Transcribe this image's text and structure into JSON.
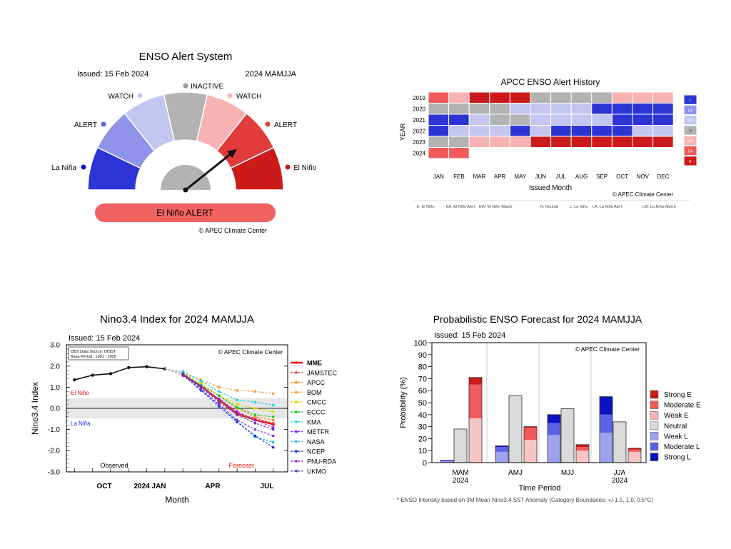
{
  "colors": {
    "strong_red": "#cc1a1a",
    "red": "#e23b3b",
    "mid_red": "#f05a5a",
    "light_red": "#f7b3b3",
    "gray": "#b3b3b3",
    "light_blue": "#c4c6f1",
    "mid_blue": "#8f93ea",
    "blue": "#5d62e5",
    "strong_blue": "#2d34d6",
    "navy": "#0b14c0",
    "banner": "#f26161"
  },
  "alert_panel": {
    "title": "ENSO Alert System",
    "issued": "Issued: 15 Feb 2024",
    "season": "2024 MAMJJA",
    "labels": {
      "inactive": "INACTIVE",
      "watch_left": "WATCH",
      "watch_right": "WATCH",
      "alert_left": "ALERT",
      "alert_right": "ALERT",
      "la_nina": "La Niña",
      "el_nino": "El Niño"
    },
    "status": "El Niño ALERT",
    "status_level": "El Niño Alert",
    "credit": "© APEC Climate Center"
  },
  "history_panel": {
    "chart_data": {
      "type": "heatmap",
      "title": "APCC ENSO Alert History",
      "xlabel": "Issued Month",
      "ylabel": "YEAR",
      "months": [
        "JAN",
        "FEB",
        "MAR",
        "APR",
        "MAY",
        "JUN",
        "JUL",
        "AUG",
        "SEP",
        "OCT",
        "NOV",
        "DEC"
      ],
      "years": [
        "2019",
        "2020",
        "2021",
        "2022",
        "2023",
        "2024"
      ],
      "cells": [
        [
          "EA",
          "EW",
          "E",
          "E",
          "E",
          "N",
          "N",
          "N",
          "N",
          "EW",
          "EW",
          "EW"
        ],
        [
          "N",
          "N",
          "N",
          "N",
          "LW",
          "LW",
          "LW",
          "LW",
          "LA",
          "LA",
          "LA",
          "LA"
        ],
        [
          "LA",
          "LA",
          "LW",
          "N",
          "N",
          "LW",
          "LW",
          "LW",
          "LW",
          "LA",
          "LA",
          "LA"
        ],
        [
          "LA",
          "LW",
          "LW",
          "LW",
          "LA",
          "LW",
          "LA",
          "LA",
          "LA",
          "LA",
          "LW",
          "LW"
        ],
        [
          "N",
          "N",
          "EW",
          "EW",
          "EW",
          "E",
          "E",
          "E",
          "E",
          "E",
          "E",
          "E"
        ],
        [
          "EA",
          "EA",
          "",
          "",
          "",
          "",
          "",
          "",
          "",
          "",
          "",
          ""
        ]
      ],
      "legend": [
        "L",
        "LA",
        "LW",
        "N",
        "EW",
        "EA",
        "E"
      ]
    },
    "credit": "© APEC Climate Center",
    "footnote": [
      "E: El Niño",
      "EA: El Niño Alert",
      "EW: El Niño Watch",
      "N: Neutral",
      "L: La Niña",
      "LA: La Niña Alert",
      "LW: La Niña Watch"
    ]
  },
  "nino_panel": {
    "chart_data": {
      "type": "line",
      "title": "Nino3.4 Index for 2024 MAMJJA",
      "issued": "Issued: 15 Feb 2024",
      "xlabel": "Month",
      "ylabel": "Nino3.4 Index",
      "ylim": [
        -3.0,
        3.0
      ],
      "yticks": [
        "3.0",
        "2.0",
        "1.0",
        "0.0",
        "-1.0",
        "-2.0",
        "-3.0"
      ],
      "xtick_labels": [
        "OCT",
        "2024 JAN",
        "APR",
        "JUL"
      ],
      "source_note": [
        "OBS Data Source: OISST",
        "Base Period : 1991 - 2020"
      ],
      "credit": "© APEC Climate Center",
      "el_nino_label": "El Niño",
      "la_nina_label": "La Niña",
      "observed_label": "Observed",
      "forecast_label": "Forecast",
      "observed": {
        "x": [
          "Aug",
          "Sep",
          "Oct",
          "Nov",
          "Dec",
          "Jan"
        ],
        "y": [
          1.35,
          1.57,
          1.64,
          1.93,
          1.97,
          1.87
        ]
      },
      "forecast_x": [
        "Feb",
        "Mar",
        "Apr",
        "May",
        "Jun",
        "Jul"
      ],
      "series": [
        {
          "name": "MME",
          "color": "#e81414",
          "values": [
            1.6,
            1.05,
            0.4,
            -0.25,
            -0.55,
            -0.75
          ]
        },
        {
          "name": "JAMSTEC",
          "color": "#e84848",
          "values": [
            1.6,
            1.0,
            0.4,
            -0.3,
            -0.45,
            -0.7
          ]
        },
        {
          "name": "APCC",
          "color": "#ff8c00",
          "values": [
            1.6,
            1.1,
            0.6,
            0.0,
            -0.4,
            -0.55
          ]
        },
        {
          "name": "BOM",
          "color": "#f59d38",
          "values": [
            1.7,
            1.35,
            1.0,
            0.85,
            0.8,
            0.7
          ]
        },
        {
          "name": "CMCC",
          "color": "#d8d800",
          "values": [
            1.7,
            1.2,
            0.6,
            0.2,
            0.0,
            -0.15
          ]
        },
        {
          "name": "ECCC",
          "color": "#1ec81e",
          "values": [
            1.65,
            1.1,
            0.6,
            0.05,
            -0.3,
            -0.4
          ]
        },
        {
          "name": "KMA",
          "color": "#12d8d8",
          "values": [
            1.75,
            1.3,
            0.8,
            0.4,
            0.3,
            0.15
          ]
        },
        {
          "name": "METFR",
          "color": "#8c1aff",
          "values": [
            1.65,
            1.05,
            0.45,
            -0.15,
            -0.55,
            -0.9
          ]
        },
        {
          "name": "NASA",
          "color": "#22b8f0",
          "values": [
            1.6,
            0.95,
            0.1,
            -0.6,
            -1.35,
            -1.6
          ]
        },
        {
          "name": "NCEP",
          "color": "#1030e0",
          "values": [
            1.6,
            0.85,
            0.1,
            -0.65,
            -1.3,
            -1.85
          ]
        },
        {
          "name": "PNU-RDA",
          "color": "#8a2be2",
          "values": [
            1.55,
            0.9,
            0.2,
            -0.55,
            -1.0,
            -1.3
          ]
        },
        {
          "name": "UKMO",
          "color": "#5a3ca0",
          "values": [
            1.6,
            1.0,
            0.3,
            -0.3,
            -0.7,
            -1.0
          ]
        }
      ]
    }
  },
  "prob_panel": {
    "chart_data": {
      "type": "bar",
      "title": "Probabilistic ENSO Forecast for 2024 MAMJJA",
      "issued": "Issued: 15 Feb 2024",
      "xlabel": "Time Period",
      "ylabel": "Probability (%)",
      "ylim": [
        0,
        100
      ],
      "yticks": [
        "100",
        "90",
        "80",
        "70",
        "60",
        "50",
        "40",
        "30",
        "20",
        "10",
        "0"
      ],
      "categories": [
        [
          "MAM",
          "2024"
        ],
        [
          "AMJ",
          ""
        ],
        [
          "MJJ",
          ""
        ],
        [
          "JJA",
          "2024"
        ]
      ],
      "credit": "© APEC Climate Center",
      "legend": [
        "Strong E",
        "Moderate E",
        "Weak E",
        "Neutral",
        "Weak L",
        "Moderate L",
        "Strong L"
      ],
      "series": [
        {
          "name": "La Niña",
          "stack": [
            {
              "level": "Weak L",
              "values": [
                1,
                9,
                23,
                25
              ]
            },
            {
              "level": "Moderate L",
              "values": [
                1,
                4,
                10,
                15
              ]
            },
            {
              "level": "Strong L",
              "values": [
                0,
                1,
                7,
                15
              ]
            }
          ]
        },
        {
          "name": "Neutral",
          "values": [
            28,
            56,
            45,
            34
          ]
        },
        {
          "name": "El Niño",
          "stack": [
            {
              "level": "Weak E",
              "values": [
                37,
                19,
                10,
                9
              ]
            },
            {
              "level": "Moderate E",
              "values": [
                28,
                10,
                3,
                2
              ]
            },
            {
              "level": "Strong E",
              "values": [
                6,
                1,
                2,
                1
              ]
            }
          ]
        }
      ],
      "footnote": "* ENSO Intensity based on 3M Mean Nino3.4 SST Anomaly (Category Boundaries: +/-1.5, 1.0, 0.5°C)"
    }
  }
}
